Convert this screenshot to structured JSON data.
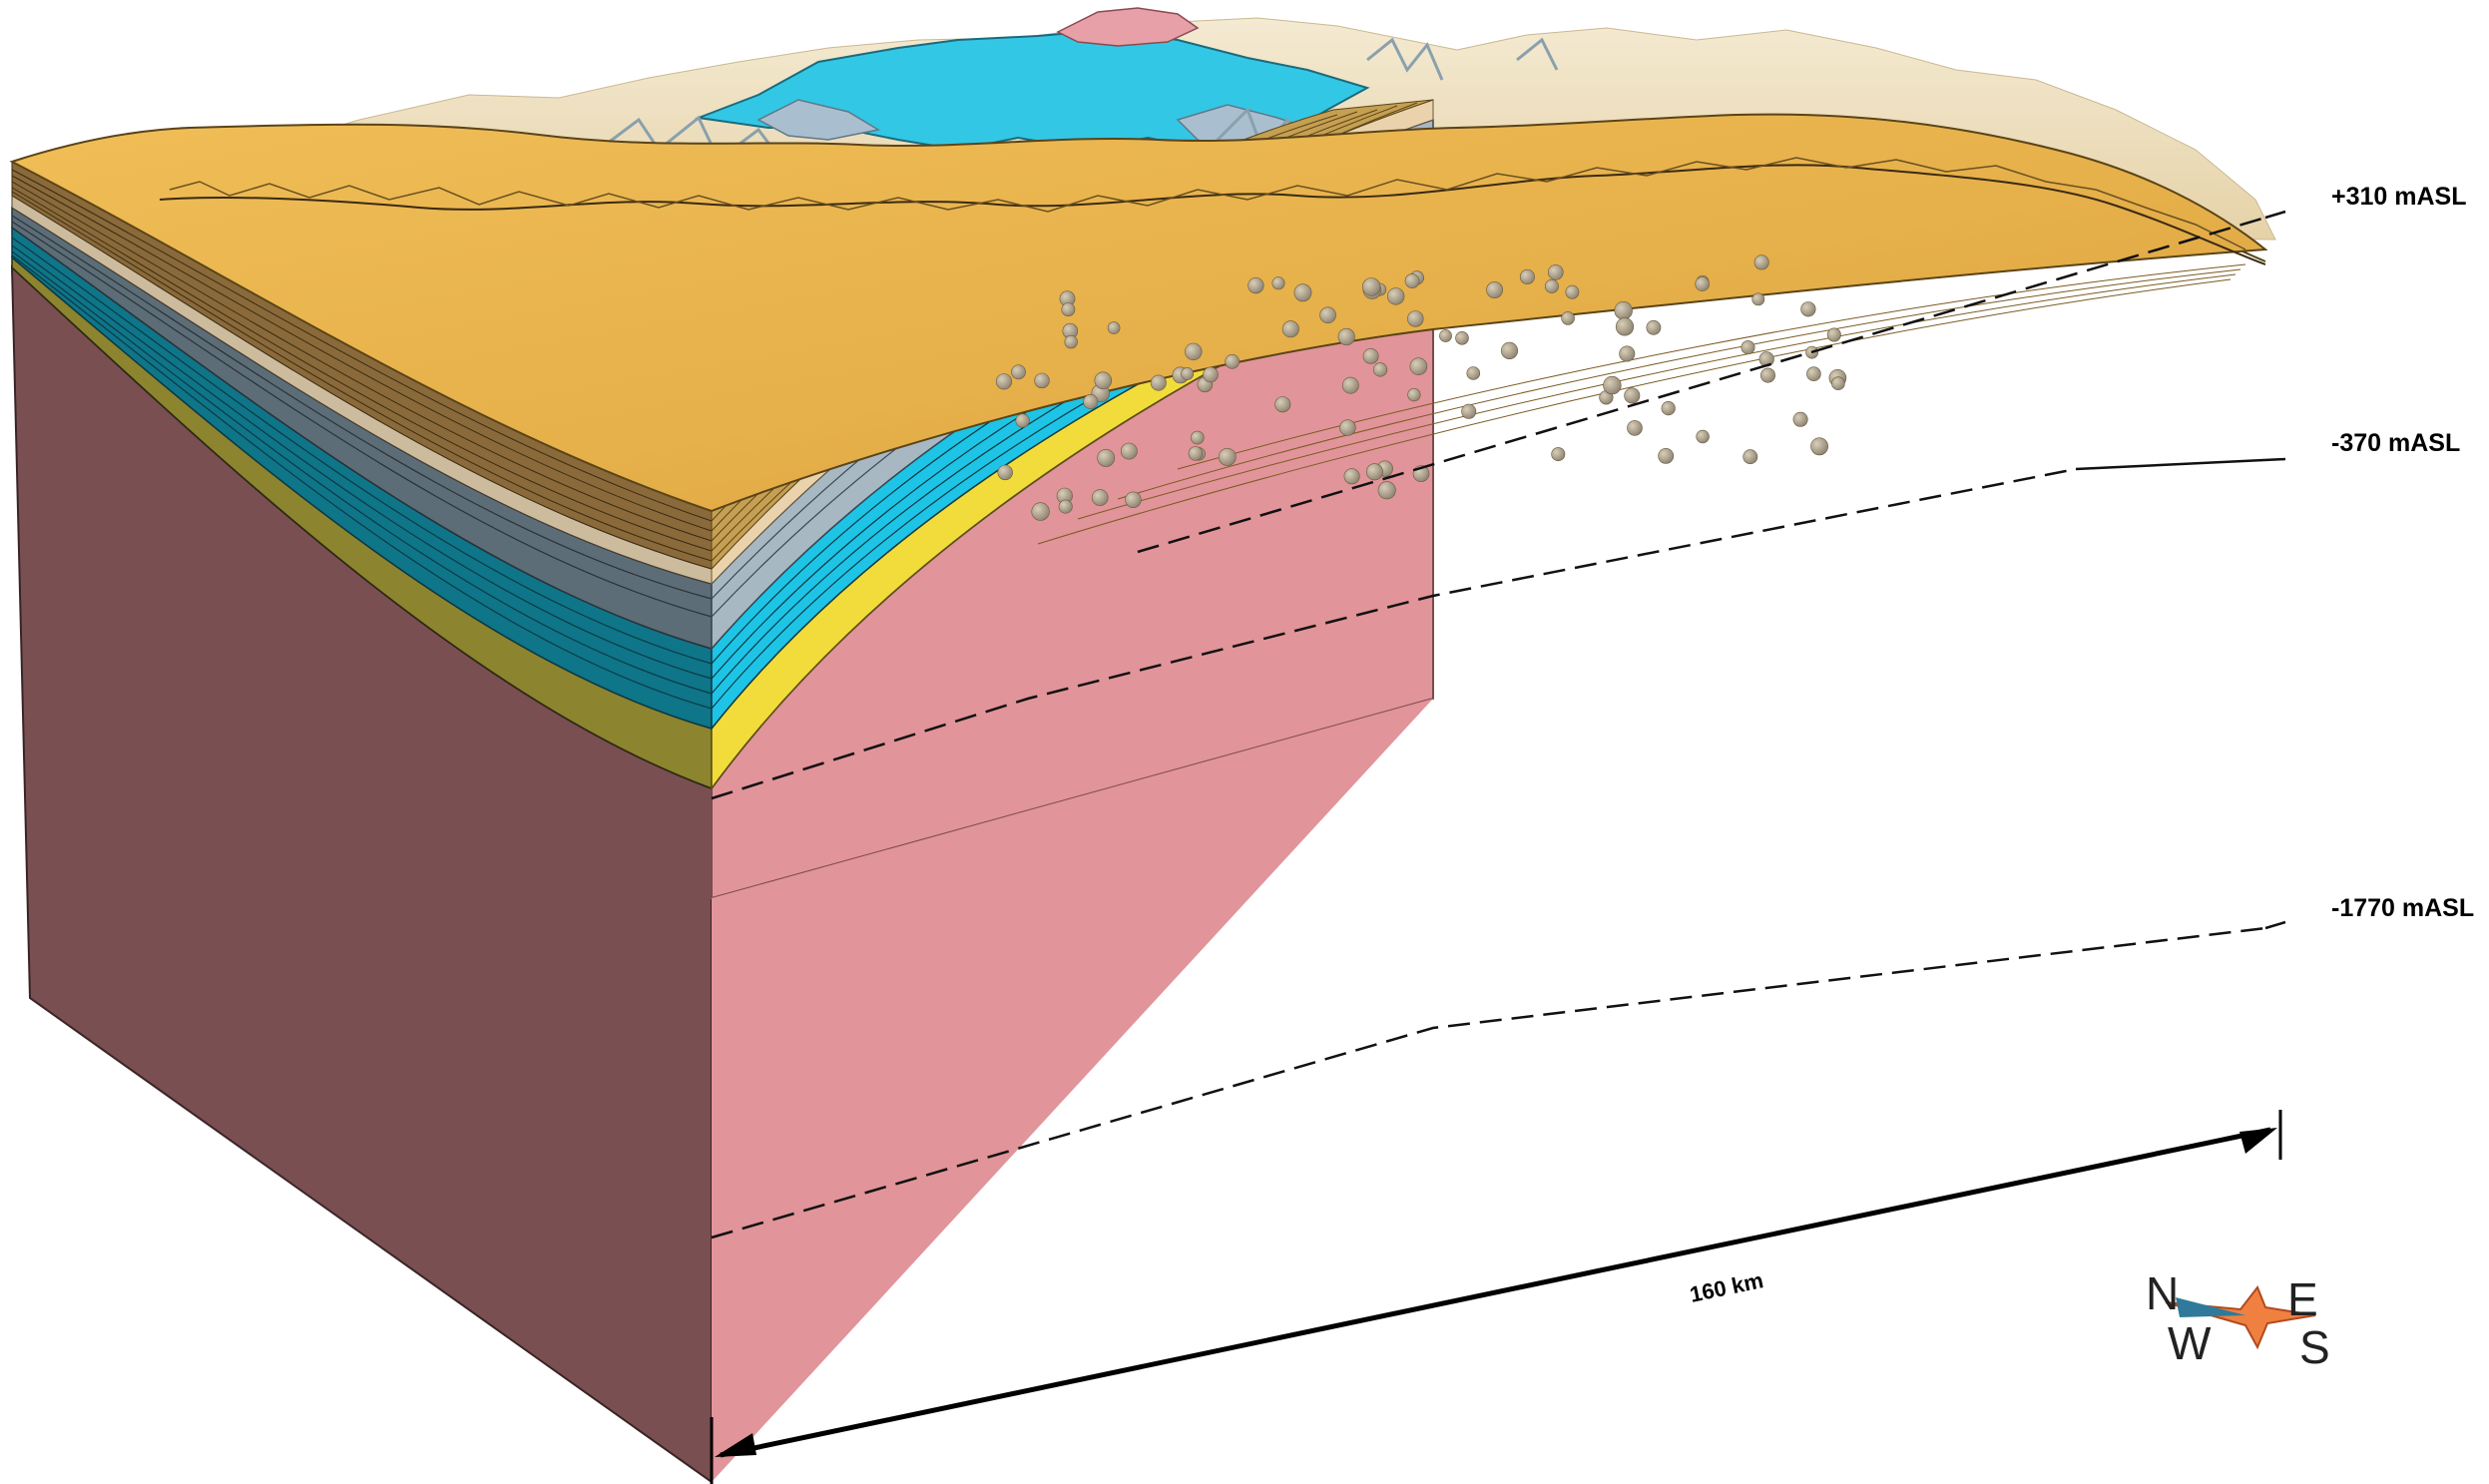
{
  "elevation_labels": {
    "top": "+310 mASL",
    "middle": "-370 mASL",
    "bottom": "-1770 mASL"
  },
  "scale_bar": {
    "label": "160 km"
  },
  "compass": {
    "n": "N",
    "e": "E",
    "s": "S",
    "w": "W"
  },
  "colors": {
    "basement_front": "#7a4f52",
    "basement_side": "#e19499",
    "yellow_front": "#8c842e",
    "yellow_side": "#f2dc3c",
    "teal_front": "#0f7589",
    "teal_side": "#1ec4e6",
    "grey_front": "#5c6d77",
    "grey_side": "#a7b8c3",
    "tan_front": "#cdbb9e",
    "tan_side": "#ead3ac",
    "brown_front": "#8a6a3a",
    "brown_side": "#c59f52",
    "surface": "#e8b24c",
    "terrain": "#efe1c1",
    "outcrop_blue": "#33c7e6",
    "outcrop_pink": "#e8a0a8",
    "outcrop_grey": "#a9bfcf"
  }
}
